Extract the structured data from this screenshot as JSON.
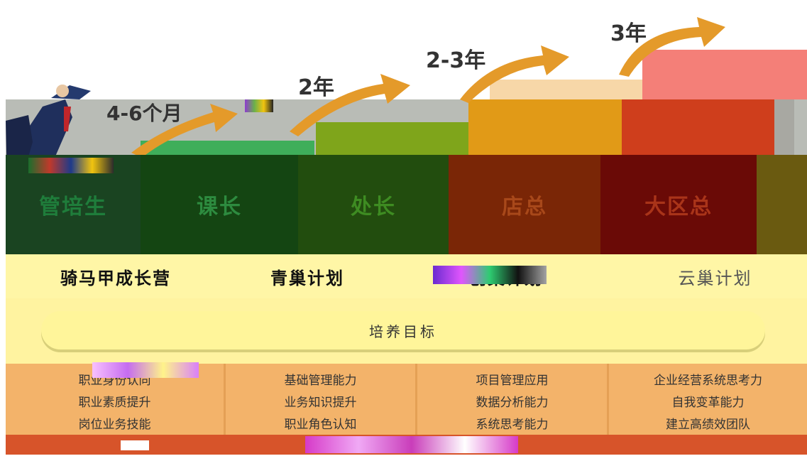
{
  "durations": [
    "4-6个月",
    "2年",
    "2-3年",
    "3年"
  ],
  "roles": [
    "管培生",
    "课长",
    "处长",
    "店总",
    "大区总"
  ],
  "plans": [
    "骑马甲成长营",
    "青巢计划",
    "创巢计划",
    "云巢计划"
  ],
  "goal_label": "培养目标",
  "targets": [
    [
      "职业身份认同",
      "职业素质提升",
      "岗位业务技能"
    ],
    [
      "基础管理能力",
      "业务知识提升",
      "职业角色认知"
    ],
    [
      "项目管理应用",
      "数据分析能力",
      "系统思考能力"
    ],
    [
      "企业经营系统思考力",
      "自我变革能力",
      "建立高绩效团队"
    ]
  ],
  "colors": {
    "arrow": "#e49a2a",
    "role_1": "#1a4421",
    "role_2": "#144512",
    "role_3": "#224d0e",
    "role_4": "#7a2606",
    "role_5": "#6a0a06",
    "goal_band": "#fff3a0",
    "target_band": "#f3b36a"
  }
}
